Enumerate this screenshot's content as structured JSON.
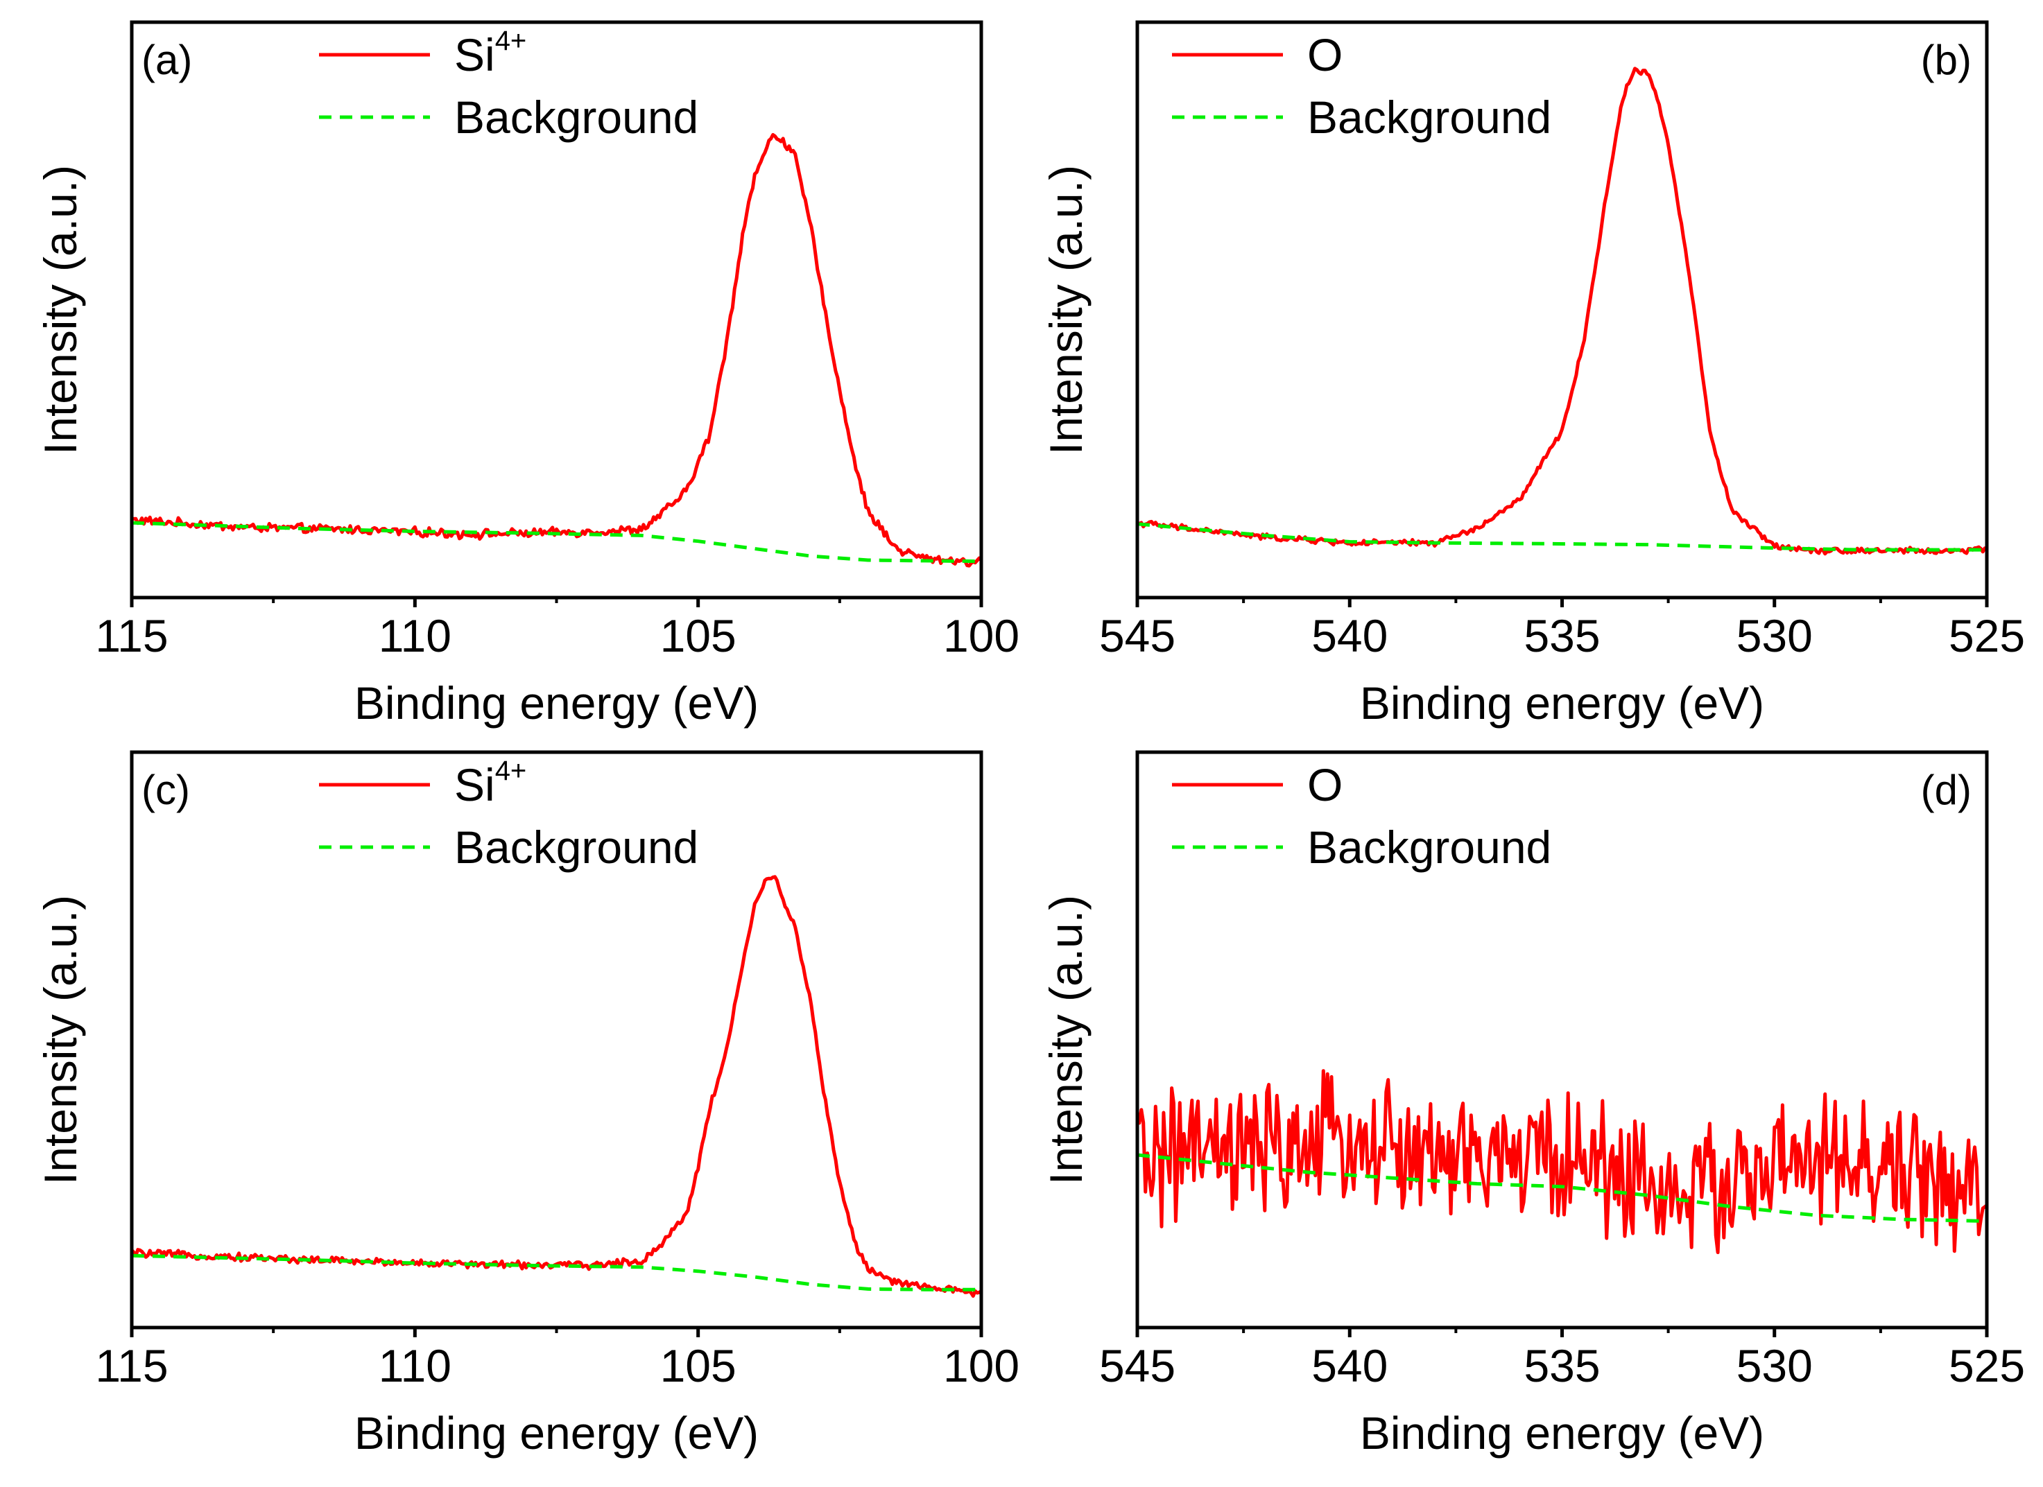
{
  "chart_data": [
    {
      "panel": "(a)",
      "type": "line",
      "xlabel": "Binding energy (eV)",
      "ylabel": "Intensity (a.u.)",
      "xlim": [
        115,
        100
      ],
      "x_reversed": true,
      "ylim": [
        0,
        1
      ],
      "xticks": [
        115,
        110,
        105,
        100
      ],
      "xtick_labels": [
        "115",
        "110",
        "105",
        "100"
      ],
      "legend": {
        "placement": "top-left",
        "entries": [
          {
            "text": "Si",
            "sup": "4+"
          },
          {
            "text": "Background"
          }
        ]
      },
      "series": [
        {
          "name": "Si4+",
          "style": "solid",
          "color": "#ff0000",
          "noise": 0.006,
          "x": [
            115,
            113,
            111,
            109,
            107,
            106,
            105.6,
            105.2,
            105,
            104.8,
            104.5,
            104.2,
            104,
            103.8,
            103.7,
            103.6,
            103.5,
            103.3,
            103,
            102.8,
            102.5,
            102.2,
            102,
            101.5,
            101,
            100.5,
            100
          ],
          "y": [
            0.135,
            0.122,
            0.118,
            0.11,
            0.114,
            0.118,
            0.15,
            0.185,
            0.235,
            0.28,
            0.44,
            0.64,
            0.735,
            0.775,
            0.805,
            0.8,
            0.795,
            0.77,
            0.64,
            0.52,
            0.36,
            0.22,
            0.15,
            0.085,
            0.068,
            0.065,
            0.06
          ]
        },
        {
          "name": "Background",
          "style": "dashed",
          "color": "#00ee00",
          "x": [
            115,
            112,
            110,
            108,
            106,
            105,
            104,
            103,
            102,
            101,
            100
          ],
          "y": [
            0.13,
            0.12,
            0.115,
            0.112,
            0.108,
            0.098,
            0.085,
            0.072,
            0.065,
            0.064,
            0.063
          ]
        }
      ]
    },
    {
      "panel": "(b)",
      "type": "line",
      "xlabel": "Binding energy (eV)",
      "ylabel": "Intensity (a.u.)",
      "xlim": [
        545,
        525
      ],
      "x_reversed": true,
      "ylim": [
        0,
        1
      ],
      "xticks": [
        545,
        540,
        535,
        530,
        525
      ],
      "xtick_labels": [
        "545",
        "540",
        "535",
        "530",
        "525"
      ],
      "legend": {
        "placement": "top-left",
        "entries": [
          {
            "text": "O"
          },
          {
            "text": "Background"
          }
        ]
      },
      "series": [
        {
          "name": "O",
          "style": "solid",
          "color": "#ff0000",
          "noise": 0.004,
          "x": [
            545,
            542,
            540,
            538,
            537,
            536,
            535,
            534.5,
            534,
            533.6,
            533.3,
            533,
            532.8,
            532.5,
            532,
            531.5,
            531,
            530,
            529,
            528,
            527,
            526,
            525
          ],
          "y": [
            0.13,
            0.105,
            0.095,
            0.095,
            0.12,
            0.17,
            0.29,
            0.44,
            0.68,
            0.86,
            0.92,
            0.91,
            0.88,
            0.79,
            0.56,
            0.28,
            0.15,
            0.09,
            0.082,
            0.082,
            0.082,
            0.08,
            0.085
          ]
        },
        {
          "name": "Background",
          "style": "dashed",
          "color": "#00ee00",
          "x": [
            545,
            542,
            540,
            538,
            536,
            533,
            530,
            528,
            525
          ],
          "y": [
            0.128,
            0.108,
            0.097,
            0.095,
            0.094,
            0.092,
            0.086,
            0.083,
            0.083
          ]
        }
      ]
    },
    {
      "panel": "(c)",
      "type": "line",
      "xlabel": "Binding energy (eV)",
      "ylabel": "Intensity (a.u.)",
      "xlim": [
        115,
        100
      ],
      "x_reversed": true,
      "ylim": [
        0,
        1
      ],
      "xticks": [
        115,
        110,
        105,
        100
      ],
      "xtick_labels": [
        "115",
        "110",
        "105",
        "100"
      ],
      "legend": {
        "placement": "top-left",
        "entries": [
          {
            "text": "Si",
            "sup": "4+"
          },
          {
            "text": "Background"
          }
        ]
      },
      "series": [
        {
          "name": "Si4+",
          "style": "solid",
          "color": "#ff0000",
          "noise": 0.005,
          "x": [
            115,
            113,
            111,
            109,
            107,
            106,
            105.6,
            105.2,
            105,
            104.8,
            104.5,
            104.2,
            104,
            103.8,
            103.7,
            103.6,
            103.5,
            103.3,
            103,
            102.8,
            102.5,
            102.2,
            102,
            101.5,
            101,
            100.5,
            100
          ],
          "y": [
            0.13,
            0.122,
            0.115,
            0.11,
            0.108,
            0.115,
            0.15,
            0.2,
            0.28,
            0.38,
            0.48,
            0.64,
            0.735,
            0.775,
            0.785,
            0.775,
            0.745,
            0.7,
            0.56,
            0.42,
            0.25,
            0.14,
            0.1,
            0.078,
            0.07,
            0.065,
            0.06
          ]
        },
        {
          "name": "Background",
          "style": "dashed",
          "color": "#00ee00",
          "x": [
            115,
            112,
            110,
            108,
            106,
            105,
            104,
            103,
            102,
            101,
            100
          ],
          "y": [
            0.125,
            0.118,
            0.112,
            0.108,
            0.105,
            0.098,
            0.088,
            0.075,
            0.067,
            0.066,
            0.066
          ]
        }
      ]
    },
    {
      "panel": "(d)",
      "type": "line",
      "xlabel": "Binding energy (eV)",
      "ylabel": "Intensity (a.u.)",
      "xlim": [
        545,
        525
      ],
      "x_reversed": true,
      "ylim": [
        0,
        1
      ],
      "xticks": [
        545,
        540,
        535,
        530,
        525
      ],
      "xtick_labels": [
        "545",
        "540",
        "535",
        "530",
        "525"
      ],
      "legend": {
        "placement": "top-left",
        "entries": [
          {
            "text": "O"
          },
          {
            "text": "Background"
          }
        ]
      },
      "series": [
        {
          "name": "O",
          "style": "solid",
          "color": "#ff0000",
          "noise": 0.09,
          "x": [
            545,
            542,
            540,
            538,
            535,
            532,
            530,
            528,
            526,
            525
          ],
          "y": [
            0.3,
            0.3,
            0.33,
            0.29,
            0.3,
            0.23,
            0.28,
            0.28,
            0.26,
            0.2
          ]
        },
        {
          "name": "Background",
          "style": "dashed",
          "color": "#00ee00",
          "x": [
            545,
            543,
            541,
            539,
            537,
            535,
            533,
            531,
            529,
            527,
            525
          ],
          "y": [
            0.3,
            0.285,
            0.27,
            0.26,
            0.25,
            0.245,
            0.23,
            0.21,
            0.195,
            0.188,
            0.185
          ]
        }
      ]
    }
  ]
}
